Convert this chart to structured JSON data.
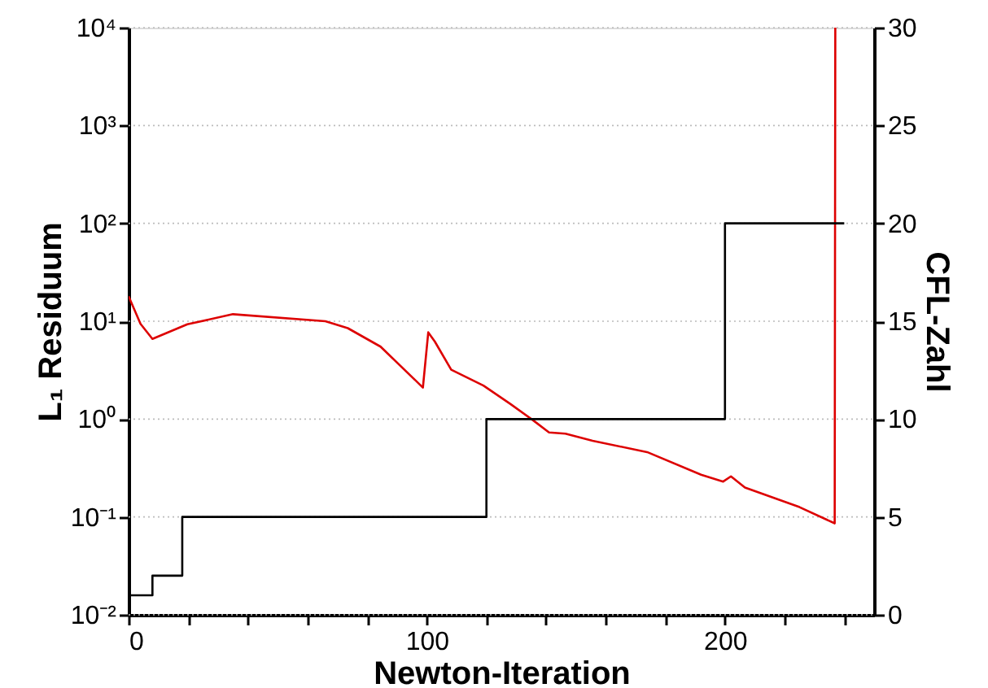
{
  "chart_data": {
    "type": "line",
    "xlabel": "Newton-Iteration",
    "ylabel": "L₁ Residuum",
    "y2label": "CFL-Zahl",
    "log": "y",
    "grid": "y",
    "marker": "none",
    "line_style": "solid",
    "xlim": [
      0,
      250
    ],
    "xticks": [
      0,
      {
        "value": 20,
        "label": null
      },
      {
        "value": 40,
        "label": null
      },
      {
        "value": 60,
        "label": null
      },
      {
        "value": 80,
        "label": null
      },
      100,
      {
        "value": 120,
        "label": null
      },
      {
        "value": 140,
        "label": null
      },
      {
        "value": 160,
        "label": null
      },
      {
        "value": 180,
        "label": null
      },
      200,
      {
        "value": 220,
        "label": null
      },
      {
        "value": 240,
        "label": null
      }
    ],
    "ylim": [
      0.01,
      10000
    ],
    "yticks": [
      {
        "value": 0.01,
        "label": "10⁻²"
      },
      {
        "value": 0.1,
        "label": "10⁻¹"
      },
      {
        "value": 1,
        "label": "10⁰"
      },
      {
        "value": 10,
        "label": "10¹"
      },
      {
        "value": 100,
        "label": "10²"
      },
      {
        "value": 1000,
        "label": "10³"
      },
      {
        "value": 10000,
        "label": "10⁴"
      }
    ],
    "y2lim": [
      0,
      30
    ],
    "y2ticks": [
      0,
      5,
      10,
      15,
      20,
      25,
      30
    ],
    "series": [
      {
        "color": "#dd0000",
        "x": [
          0,
          4,
          8,
          19.7,
          35,
          66,
          73.5,
          84.5,
          98.7,
          100.5,
          102.7,
          108.2,
          119,
          128,
          135.5,
          141,
          146.5,
          155.6,
          173.9,
          192,
          199.4,
          202,
          206.7,
          225,
          236.8,
          237
        ],
        "values": [
          18,
          9.4,
          6.6,
          9.3,
          11.8,
          10,
          8.5,
          5.5,
          2.1,
          7.7,
          6.2,
          3.2,
          2.2,
          1.43,
          0.98,
          0.73,
          0.71,
          0.6,
          0.46,
          0.27,
          0.23,
          0.26,
          0.2,
          0.126,
          0.086,
          10000
        ]
      },
      {
        "type": "step",
        "axis": "y2",
        "color": "#000000",
        "x": [
          0,
          8,
          18,
          120,
          200,
          240
        ],
        "values": [
          1,
          2,
          5,
          10,
          20,
          20
        ]
      }
    ]
  }
}
